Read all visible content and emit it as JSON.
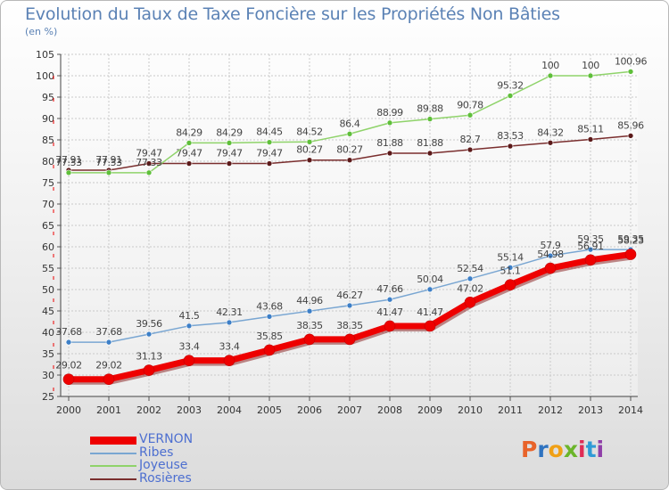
{
  "header": {
    "title": "Evolution du Taux de Taxe Foncière sur les Propriétés Non Bâties",
    "unit": "(en %)"
  },
  "logo": {
    "text": "Proxiti",
    "colors": [
      "#e8632a",
      "#2f73c0",
      "#f0a015",
      "#6bb52a",
      "#e02c56",
      "#2f9bd6",
      "#8f3fa8"
    ]
  },
  "chart_data": {
    "type": "line",
    "title": "Evolution du Taux de Taxe Foncière sur les Propriétés Non Bâties",
    "ylabel": "(en %)",
    "xlabel": "",
    "x": [
      "2000",
      "2001",
      "2002",
      "2003",
      "2004",
      "2005",
      "2006",
      "2007",
      "2008",
      "2009",
      "2010",
      "2011",
      "2012",
      "2013",
      "2014"
    ],
    "ylim": [
      25,
      105
    ],
    "yticks": [
      "25",
      "30",
      "35",
      "40",
      "45",
      "50",
      "55",
      "60",
      "65",
      "70",
      "75",
      "80",
      "85",
      "90",
      "95",
      "100",
      "105"
    ],
    "grid": true,
    "legend_position": "bottom-left",
    "series": [
      {
        "name": "VERNON",
        "color": "#ee0000",
        "marker_color": "#ee0000",
        "values": [
          29.02,
          29.02,
          31.13,
          33.4,
          33.4,
          35.85,
          38.35,
          38.35,
          41.47,
          41.47,
          47.02,
          51.1,
          54.98,
          56.91,
          58.23
        ],
        "labels": [
          "29.02",
          "29.02",
          "31.13",
          "33.4",
          "33.4",
          "35.85",
          "38.35",
          "38.35",
          "41.47",
          "41.47",
          "47.02",
          "51.1",
          "54.98",
          "56.91",
          "58.23"
        ]
      },
      {
        "name": "Ribes",
        "color": "#79a6d2",
        "marker_color": "#3d7fc7",
        "values": [
          37.68,
          37.68,
          39.56,
          41.5,
          42.31,
          43.68,
          44.96,
          46.27,
          47.66,
          50.04,
          52.54,
          55.14,
          57.9,
          59.35,
          59.35
        ],
        "labels": [
          "37.68",
          "37.68",
          "39.56",
          "41.5",
          "42.31",
          "43.68",
          "44.96",
          "46.27",
          "47.66",
          "50.04",
          "52.54",
          "55.14",
          "57.9",
          "59.35",
          "59.35"
        ]
      },
      {
        "name": "Joyeuse",
        "color": "#8fd36a",
        "marker_color": "#5fbf3a",
        "values": [
          77.33,
          77.33,
          77.33,
          84.29,
          84.29,
          84.45,
          84.52,
          86.4,
          88.99,
          89.88,
          90.78,
          95.32,
          100,
          100,
          100.96
        ],
        "labels": [
          "77.33",
          "77.33",
          "77.33",
          "84.29",
          "84.29",
          "84.45",
          "84.52",
          "86.4",
          "88.99",
          "89.88",
          "90.78",
          "95.32",
          "100",
          "100",
          "100.96"
        ]
      },
      {
        "name": "Rosières",
        "color": "#7a2e2e",
        "marker_color": "#5c1a1a",
        "values": [
          77.91,
          77.91,
          79.47,
          79.47,
          79.47,
          79.47,
          80.27,
          80.27,
          81.88,
          81.88,
          82.7,
          83.53,
          84.32,
          85.11,
          85.96
        ],
        "labels": [
          "77.91",
          "77.91",
          "79.47",
          "79.47",
          "79.47",
          "79.47",
          "80.27",
          "80.27",
          "81.88",
          "81.88",
          "82.7",
          "83.53",
          "84.32",
          "85.11",
          "85.96"
        ]
      }
    ]
  }
}
